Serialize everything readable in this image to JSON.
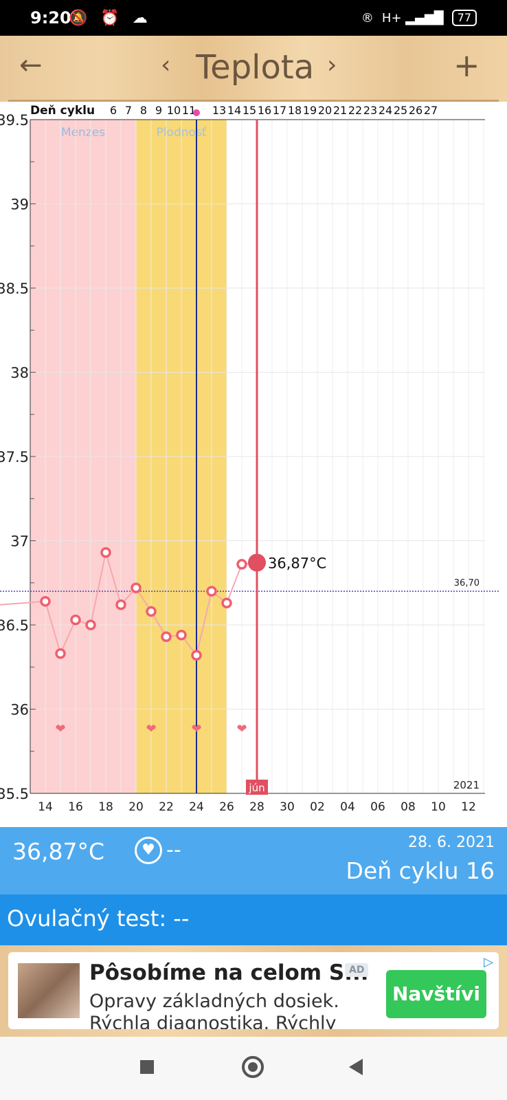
{
  "status_bar": {
    "time": "9:20",
    "left_icons": "🔕 ⏰ ☁",
    "right_icons": [
      "®",
      "H+ ▂▄▆█"
    ],
    "battery": "77"
  },
  "toolbar": {
    "back_icon": "←",
    "prev_icon": "‹",
    "title": "Teplota",
    "next_icon": "›",
    "add_icon": "+"
  },
  "chart_data": {
    "type": "line",
    "title": "",
    "header_label": "Deň cyklu",
    "day_header_labels": [
      "6",
      "7",
      "8",
      "9",
      "10",
      "11",
      "13",
      "14",
      "15",
      "16",
      "17",
      "18",
      "19",
      "20",
      "21",
      "22",
      "23",
      "24",
      "25",
      "26",
      "27"
    ],
    "ylim": [
      35.5,
      39.5
    ],
    "y_ticks": [
      "39.5",
      "39",
      "38.5",
      "38",
      "37.5",
      "37",
      "36.5",
      "36",
      "35.5"
    ],
    "x_tick_labels": [
      "14",
      "16",
      "18",
      "20",
      "22",
      "24",
      "26",
      "28",
      "30",
      "02",
      "04",
      "06",
      "08",
      "10",
      "12"
    ],
    "x_start_date": "2021-05-13",
    "phases": [
      {
        "label": "Menzes",
        "from_day": 0,
        "to_day": 7,
        "color": "#fdd1d1"
      },
      {
        "label": "Plodnosť",
        "from_day": 7,
        "to_day": 13,
        "color": "#f8d976"
      }
    ],
    "cover_line": {
      "value": 36.7,
      "label": "36,70"
    },
    "ovulation_day_index": 11,
    "series": [
      {
        "points": [
          [
            1,
            36.64
          ],
          [
            2,
            36.33
          ],
          [
            3,
            36.53
          ],
          [
            4,
            36.5
          ],
          [
            5,
            36.93
          ],
          [
            6,
            36.62
          ],
          [
            7,
            36.72
          ],
          [
            8,
            36.58
          ],
          [
            9,
            36.43
          ],
          [
            10,
            36.44
          ],
          [
            11,
            36.32
          ],
          [
            12,
            36.7
          ],
          [
            13,
            36.63
          ],
          [
            14,
            36.86
          ]
        ],
        "color": "#ef5f6f"
      }
    ],
    "current": {
      "day_index": 15,
      "value": 36.87,
      "label": "36,87°C"
    },
    "intercourse_days": [
      2,
      8,
      11,
      14
    ],
    "month_label": "jún",
    "year_label": "2021"
  },
  "info": {
    "temperature": "36,87°C",
    "heart_value": "--",
    "date": "28. 6. 2021",
    "cycle_day": "Deň cyklu 16"
  },
  "ovulation": {
    "label": "Ovulačný test: --"
  },
  "ad": {
    "title": "Pôsobíme na celom S...",
    "ad_label": "AD",
    "text": "Opravy základných dosiek. Rýchla diagnostika. Rýchly a ...",
    "cta": "Navštívi"
  },
  "colors": {
    "accent_blue": "#4fa9ee",
    "ovul_blue": "#1e90e8",
    "temp_red": "#ef5f6f",
    "current_red": "#e05060"
  }
}
